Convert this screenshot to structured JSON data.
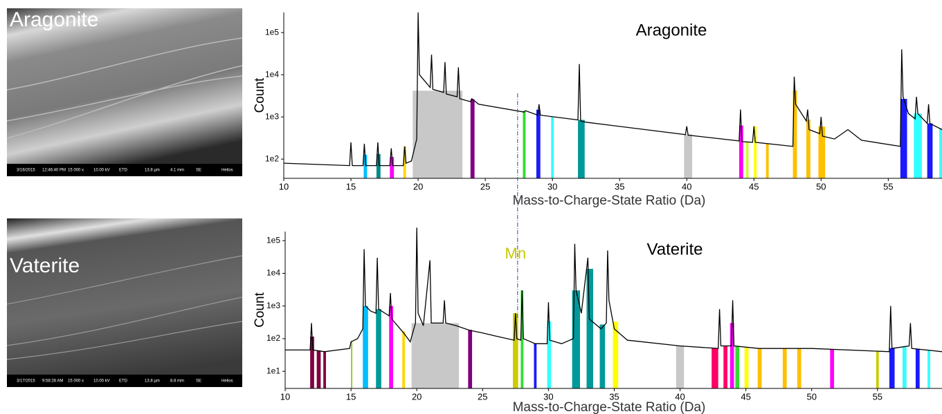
{
  "images": [
    {
      "label": "Aragonite",
      "info": [
        "3/16/2015",
        "12:46:40 PM",
        "15 000 x",
        "10.00 kV",
        "ETD",
        "13.8 µm",
        "4.1 mm",
        "SE",
        "Helios"
      ]
    },
    {
      "label": "Vaterite",
      "info": [
        "3/17/2015",
        "9:58:28 AM",
        "15 000 x",
        "10.00 kV",
        "ETD",
        "13.8 µm",
        "8.8 mm",
        "SE",
        "Helios"
      ]
    }
  ],
  "chart_data": [
    {
      "type": "line",
      "title": "Aragonite",
      "x_label": "Mass-to-Charge-State Ratio (Da)",
      "y_label": "Count",
      "log_y": true,
      "color": "#000000",
      "xlim": [
        10,
        59
      ],
      "ylim": [
        35,
        300000
      ],
      "xticks": [
        10,
        15,
        20,
        25,
        30,
        35,
        40,
        45,
        50,
        55
      ],
      "yticks": [
        {
          "value": 100,
          "label": "1e2"
        },
        {
          "value": 1000,
          "label": "1e3"
        },
        {
          "value": 10000,
          "label": "1e4"
        },
        {
          "value": 100000,
          "label": "1e5"
        }
      ],
      "x": [
        10,
        14.9,
        15,
        15.1,
        15.9,
        16,
        16.1,
        16.9,
        17,
        17.1,
        17.9,
        18,
        18.1,
        18.9,
        19,
        19.1,
        19.5,
        19.9,
        20,
        20.1,
        20.9,
        21,
        21.1,
        21.9,
        22,
        22.1,
        22.9,
        23,
        23.1,
        23.9,
        24,
        24.5,
        27.9,
        28,
        28.9,
        29,
        29.1,
        31.9,
        32,
        32.1,
        32.5,
        39.9,
        40,
        40.1,
        43.9,
        44,
        44.1,
        44.9,
        45,
        45.1,
        47.9,
        48,
        48.1,
        48.9,
        49,
        49.1,
        49.9,
        50,
        50.1,
        51,
        52,
        53,
        55.9,
        56,
        56.1,
        56.5,
        57,
        57.1,
        57.2,
        57.9,
        58,
        58.1,
        59
      ],
      "values": [
        80,
        70,
        250,
        70,
        70,
        230,
        70,
        70,
        250,
        70,
        70,
        180,
        70,
        70,
        200,
        80,
        90,
        300,
        300000,
        10000,
        5000,
        30000,
        4500,
        3800,
        20000,
        3500,
        3000,
        15000,
        2700,
        2300,
        2700,
        2000,
        1300,
        1400,
        1100,
        2000,
        1100,
        850,
        18000,
        800,
        750,
        380,
        600,
        370,
        270,
        1500,
        260,
        250,
        600,
        250,
        200,
        9000,
        2000,
        800,
        1500,
        500,
        400,
        1000,
        350,
        300,
        500,
        280,
        200,
        40000,
        3000,
        1200,
        900,
        3000,
        1200,
        700,
        2000,
        700,
        500
      ],
      "ranges": [
        {
          "x": [
            15.95,
            16.2
          ],
          "color": "#00bfff"
        },
        {
          "x": [
            16.9,
            17.2
          ],
          "color": "#008b8b"
        },
        {
          "x": [
            17.9,
            18.2
          ],
          "color": "#ff00ff"
        },
        {
          "x": [
            18.9,
            19.1
          ],
          "color": "#ffd700"
        },
        {
          "x": [
            19.6,
            23.3
          ],
          "color": "#c8c8c8"
        },
        {
          "x": [
            23.9,
            24.2
          ],
          "color": "#800080"
        },
        {
          "x": [
            27.8,
            28.0
          ],
          "color": "#33dd33"
        },
        {
          "x": [
            28.8,
            29.1
          ],
          "color": "#1a1aff"
        },
        {
          "x": [
            29.9,
            30.1
          ],
          "color": "#33ffff"
        },
        {
          "x": [
            31.9,
            32.4
          ],
          "color": "#009999"
        },
        {
          "x": [
            39.8,
            40.4
          ],
          "color": "#c8c8c8"
        },
        {
          "x": [
            43.9,
            44.2
          ],
          "color": "#ff00ff"
        },
        {
          "x": [
            44.4,
            44.6
          ],
          "color": "#ccff33"
        },
        {
          "x": [
            45.0,
            45.2
          ],
          "color": "#ffff00"
        },
        {
          "x": [
            45.9,
            46.1
          ],
          "color": "#ffc000"
        },
        {
          "x": [
            47.9,
            48.2
          ],
          "color": "#ffc000"
        },
        {
          "x": [
            48.9,
            49.2
          ],
          "color": "#ffc000"
        },
        {
          "x": [
            49.8,
            50.3
          ],
          "color": "#ffc000"
        },
        {
          "x": [
            55.9,
            56.4
          ],
          "color": "#1a1aff"
        },
        {
          "x": [
            56.9,
            57.5
          ],
          "color": "#33ffff"
        },
        {
          "x": [
            57.9,
            58.3
          ],
          "color": "#1a1aff"
        },
        {
          "x": [
            58.8,
            59
          ],
          "color": "#33ffff"
        }
      ]
    },
    {
      "type": "line",
      "title": "Vaterite",
      "x_label": "Mass-to-Charge-State Ratio (Da)",
      "y_label": "Count",
      "log_y": true,
      "color": "#000000",
      "xlim": [
        10,
        59.9
      ],
      "ylim": [
        3,
        190000
      ],
      "xticks": [
        10,
        15,
        20,
        25,
        30,
        35,
        40,
        45,
        50,
        55
      ],
      "yticks": [
        {
          "value": 10,
          "label": "1e1"
        },
        {
          "value": 100,
          "label": "1e2"
        },
        {
          "value": 1000,
          "label": "1e3"
        },
        {
          "value": 10000,
          "label": "1e4"
        },
        {
          "value": 100000,
          "label": "1e5"
        }
      ],
      "x": [
        10,
        11.9,
        12,
        12.1,
        13,
        14.9,
        15,
        15.5,
        15.9,
        16,
        16.1,
        16.5,
        16.9,
        17,
        17.1,
        17.9,
        18,
        18.1,
        19,
        19.5,
        19.9,
        20,
        20.1,
        20.5,
        21,
        21.1,
        22,
        22.1,
        22.2,
        23,
        24,
        25,
        26,
        27.4,
        27.5,
        27.6,
        27.9,
        28,
        28.1,
        29,
        29.9,
        30,
        30.1,
        31,
        31.9,
        32,
        32.1,
        32.5,
        33,
        33.1,
        34,
        34.4,
        34.5,
        34.6,
        35,
        36,
        40,
        42.9,
        43,
        43.1,
        43.9,
        44,
        44.1,
        46,
        48,
        50,
        55.9,
        56,
        56.1,
        57.4,
        57.5,
        57.6,
        59.9
      ],
      "values": [
        45,
        45,
        300,
        45,
        40,
        50,
        80,
        100,
        200,
        55000,
        1000,
        700,
        600,
        30000,
        800,
        500,
        2500,
        400,
        150,
        80,
        300,
        250000,
        600,
        250,
        25000,
        300,
        300,
        1500,
        300,
        250,
        180,
        150,
        120,
        90,
        600,
        100,
        90,
        3000,
        100,
        70,
        70,
        1300,
        90,
        70,
        100,
        80000,
        3000,
        600,
        30000,
        400,
        200,
        300,
        50000,
        1500,
        200,
        90,
        60,
        50,
        800,
        60,
        60,
        1500,
        60,
        50,
        50,
        50,
        40,
        1000,
        50,
        60,
        300,
        50,
        40
      ],
      "ranges": [
        {
          "x": [
            11.9,
            12.2
          ],
          "color": "#800040"
        },
        {
          "x": [
            12.4,
            12.7
          ],
          "color": "#800040"
        },
        {
          "x": [
            12.9,
            13.1
          ],
          "color": "#800040"
        },
        {
          "x": [
            15,
            15.1
          ],
          "color": "#99cc33"
        },
        {
          "x": [
            15.9,
            16.3
          ],
          "color": "#00bfff"
        },
        {
          "x": [
            16.9,
            17.3
          ],
          "color": "#009999"
        },
        {
          "x": [
            17.9,
            18.2
          ],
          "color": "#ff00ff"
        },
        {
          "x": [
            18.9,
            19.1
          ],
          "color": "#ffd700"
        },
        {
          "x": [
            19.6,
            23.2
          ],
          "color": "#c8c8c8"
        },
        {
          "x": [
            23.9,
            24.2
          ],
          "color": "#800080"
        },
        {
          "x": [
            27.3,
            27.7
          ],
          "color": "#cccc00"
        },
        {
          "x": [
            27.9,
            28.1
          ],
          "color": "#33dd33"
        },
        {
          "x": [
            28.9,
            29.1
          ],
          "color": "#1a1aff"
        },
        {
          "x": [
            29.9,
            30.2
          ],
          "color": "#33ffff"
        },
        {
          "x": [
            31.8,
            32.4
          ],
          "color": "#009999"
        },
        {
          "x": [
            32.9,
            33.4
          ],
          "color": "#009999"
        },
        {
          "x": [
            33.9,
            34.3
          ],
          "color": "#009999"
        },
        {
          "x": [
            34.9,
            35.3
          ],
          "color": "#ffff00"
        },
        {
          "x": [
            39.7,
            40.3
          ],
          "color": "#c8c8c8"
        },
        {
          "x": [
            42.4,
            42.9
          ],
          "color": "#ff0066"
        },
        {
          "x": [
            43.3,
            43.6
          ],
          "color": "#ff0066"
        },
        {
          "x": [
            43.8,
            44.1
          ],
          "color": "#ff00ff"
        },
        {
          "x": [
            44.2,
            44.5
          ],
          "color": "#33dd33"
        },
        {
          "x": [
            44.9,
            45.2
          ],
          "color": "#ffff00"
        },
        {
          "x": [
            45.9,
            46.2
          ],
          "color": "#ffc000"
        },
        {
          "x": [
            47.8,
            48.1
          ],
          "color": "#ffc000"
        },
        {
          "x": [
            48.9,
            49.2
          ],
          "color": "#ffc000"
        },
        {
          "x": [
            51.4,
            51.7
          ],
          "color": "#ff00ff"
        },
        {
          "x": [
            54.9,
            55.1
          ],
          "color": "#cccc00"
        },
        {
          "x": [
            55.9,
            56.3
          ],
          "color": "#1a1aff"
        },
        {
          "x": [
            56.9,
            57.2
          ],
          "color": "#33ffff"
        },
        {
          "x": [
            57.9,
            58.2
          ],
          "color": "#1a1aff"
        },
        {
          "x": [
            58.8,
            59
          ],
          "color": "#33ffff"
        }
      ],
      "annotations": [
        {
          "text": "Mn",
          "x": 27.5,
          "color": "#c8c800"
        }
      ]
    }
  ]
}
